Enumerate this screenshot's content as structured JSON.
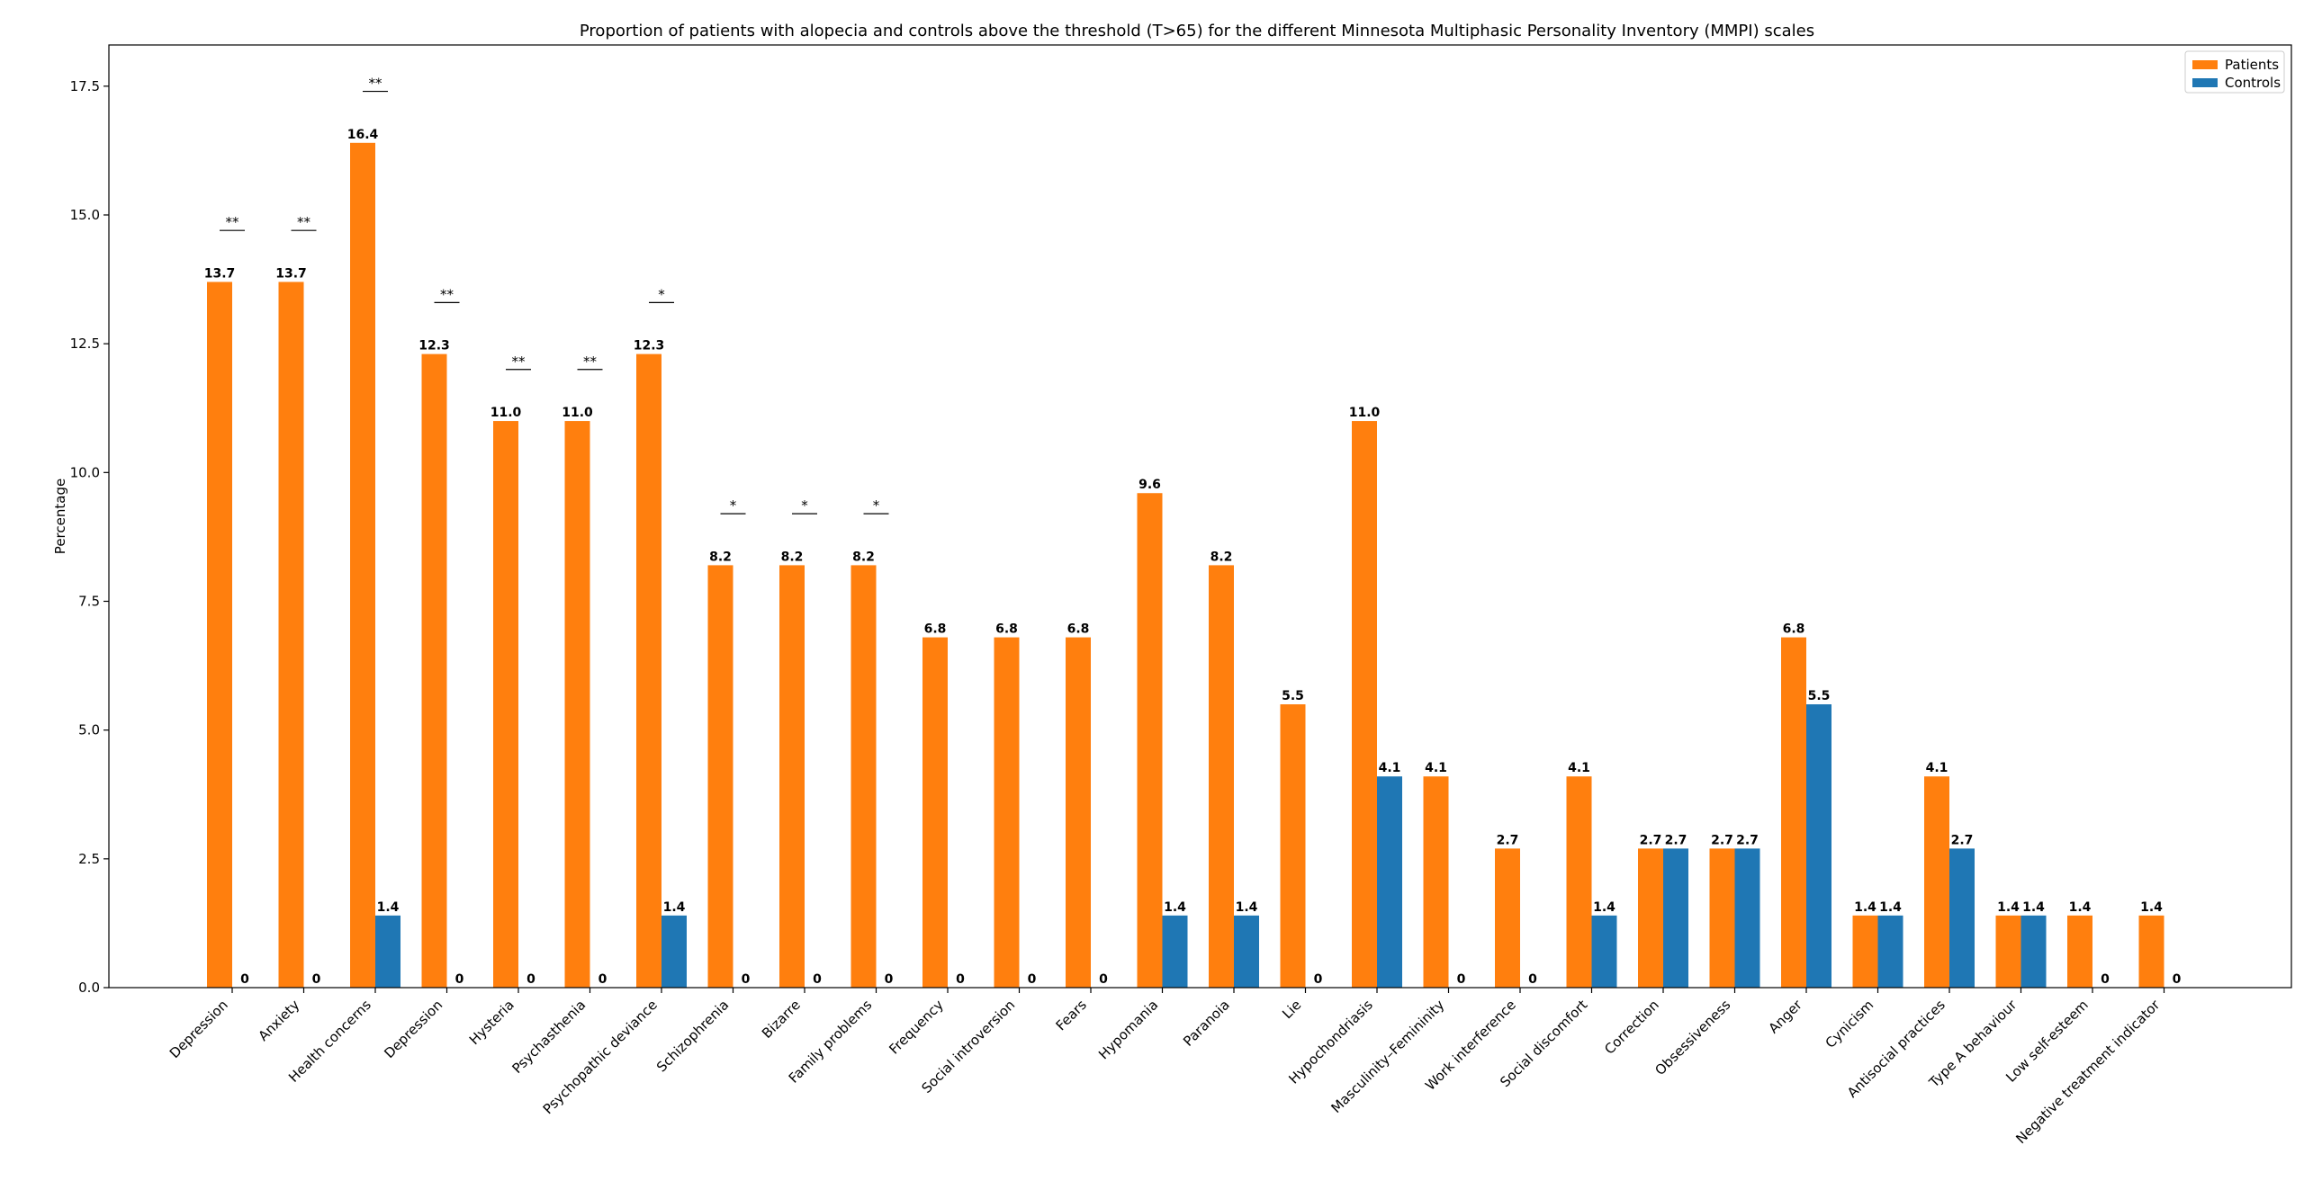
{
  "chart_data": {
    "type": "bar",
    "title": "Proportion of patients with alopecia and controls above the threshold (T>65) for the different Minnesota Multiphasic Personality Inventory (MMPI) scales",
    "xlabel": "",
    "ylabel": "Percentage",
    "ylim": [
      0,
      18.3
    ],
    "yticks": [
      0.0,
      2.5,
      5.0,
      7.5,
      10.0,
      12.5,
      15.0,
      17.5
    ],
    "ytick_labels": [
      "0.0",
      "2.5",
      "5.0",
      "7.5",
      "10.0",
      "12.5",
      "15.0",
      "17.5"
    ],
    "grid": false,
    "legend_position": "top-right",
    "categories": [
      "Depression",
      "Anxiety",
      "Health concerns",
      "Depression",
      "Hysteria",
      "Psychasthenia",
      "Psychopathic deviance",
      "Schizophrenia",
      "Bizarre",
      "Family problems",
      "Frequency",
      "Social introversion",
      "Fears",
      "Hypomania",
      "Paranoia",
      "Lie",
      "Hypochondriasis",
      "Masculinity–Femininity",
      "Work interference",
      "Social discomfort",
      "Correction",
      "Obsessiveness",
      "Anger",
      "Cynicism",
      "Antisocial practices",
      "Type A behaviour",
      "Low self-esteem",
      "Negative treatment indicator"
    ],
    "series": [
      {
        "name": "Patients",
        "color": "#ff7f0e",
        "values": [
          13.7,
          13.7,
          16.4,
          12.3,
          11.0,
          11.0,
          12.3,
          8.2,
          8.2,
          8.2,
          6.8,
          6.8,
          6.8,
          9.6,
          8.2,
          5.5,
          11.0,
          4.1,
          2.7,
          4.1,
          2.7,
          2.7,
          6.8,
          1.4,
          4.1,
          1.4,
          1.4,
          1.4
        ],
        "labels": [
          "13.7",
          "13.7",
          "16.4",
          "12.3",
          "11.0",
          "11.0",
          "12.3",
          "8.2",
          "8.2",
          "8.2",
          "6.8",
          "6.8",
          "6.8",
          "9.6",
          "8.2",
          "5.5",
          "11.0",
          "4.1",
          "2.7",
          "4.1",
          "2.7",
          "2.7",
          "6.8",
          "1.4",
          "4.1",
          "1.4",
          "1.4",
          "1.4"
        ]
      },
      {
        "name": "Controls",
        "color": "#1f77b4",
        "values": [
          0,
          0,
          1.4,
          0,
          0,
          0,
          1.4,
          0,
          0,
          0,
          0,
          0,
          0,
          1.4,
          1.4,
          0,
          4.1,
          0,
          0,
          1.4,
          2.7,
          2.7,
          5.5,
          1.4,
          2.7,
          1.4,
          0,
          0
        ],
        "labels": [
          "0",
          "0",
          "1.4",
          "0",
          "0",
          "0",
          "1.4",
          "0",
          "0",
          "0",
          "0",
          "0",
          "0",
          "1.4",
          "1.4",
          "0",
          "4.1",
          "0",
          "0",
          "1.4",
          "2.7",
          "2.7",
          "5.5",
          "1.4",
          "2.7",
          "1.4",
          "0",
          "0"
        ]
      }
    ],
    "significance": [
      {
        "index": 0,
        "marker": "**",
        "level": 14.7
      },
      {
        "index": 1,
        "marker": "**",
        "level": 14.7
      },
      {
        "index": 2,
        "marker": "**",
        "level": 17.4
      },
      {
        "index": 3,
        "marker": "**",
        "level": 13.3
      },
      {
        "index": 4,
        "marker": "**",
        "level": 12.0
      },
      {
        "index": 5,
        "marker": "**",
        "level": 12.0
      },
      {
        "index": 6,
        "marker": "*",
        "level": 13.3
      },
      {
        "index": 7,
        "marker": "*",
        "level": 9.2
      },
      {
        "index": 8,
        "marker": "*",
        "level": 9.2
      },
      {
        "index": 9,
        "marker": "*",
        "level": 9.2
      }
    ]
  }
}
